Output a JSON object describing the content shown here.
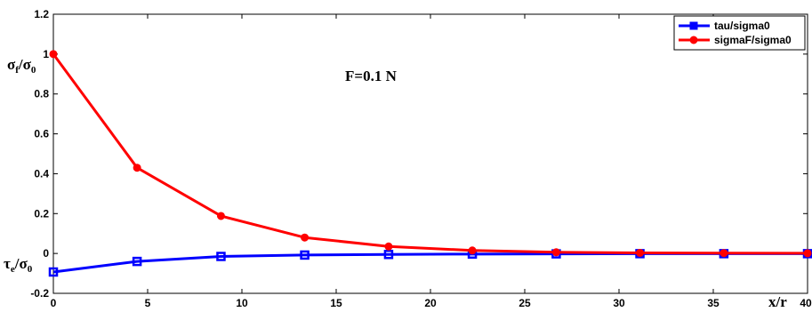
{
  "chart_data": {
    "type": "line",
    "annotation": "F=0.1 N",
    "xlabel": "x/r",
    "ylabel_top": {
      "main": "σ",
      "sub1": "f",
      "slash": "/σ",
      "sub2": "0"
    },
    "ylabel_bottom": {
      "main": "τ",
      "sub1": "e",
      "slash": "/σ",
      "sub2": "0"
    },
    "xlim": [
      0,
      40
    ],
    "ylim": [
      -0.2,
      1.2
    ],
    "xticks": [
      0,
      5,
      10,
      15,
      20,
      25,
      30,
      35
    ],
    "yticks": [
      -0.2,
      0,
      0.2,
      0.4,
      0.6,
      0.8,
      1,
      1.2
    ],
    "ytick_labels": [
      "-0.2",
      "0",
      "0.2",
      "0.4",
      "0.6",
      "0.8",
      "1",
      "1.2"
    ],
    "grid": false,
    "legend_position": "top-right",
    "series": [
      {
        "name": "tau/sigma0",
        "color": "#0000ff",
        "marker": "square",
        "x": [
          0,
          4.44,
          8.89,
          13.33,
          17.78,
          22.22,
          26.67,
          31.11,
          35.56,
          40
        ],
        "y": [
          -0.093,
          -0.04,
          -0.015,
          -0.008,
          -0.005,
          -0.003,
          -0.002,
          -0.001,
          -0.001,
          -0.001
        ]
      },
      {
        "name": "sigmaF/sigma0",
        "color": "#ff0000",
        "marker": "circle",
        "x": [
          0,
          4.44,
          8.89,
          13.33,
          17.78,
          22.22,
          26.67,
          31.11,
          35.56,
          40
        ],
        "y": [
          1.0,
          0.43,
          0.188,
          0.08,
          0.035,
          0.015,
          0.006,
          0.003,
          0.002,
          0.001
        ]
      }
    ]
  }
}
